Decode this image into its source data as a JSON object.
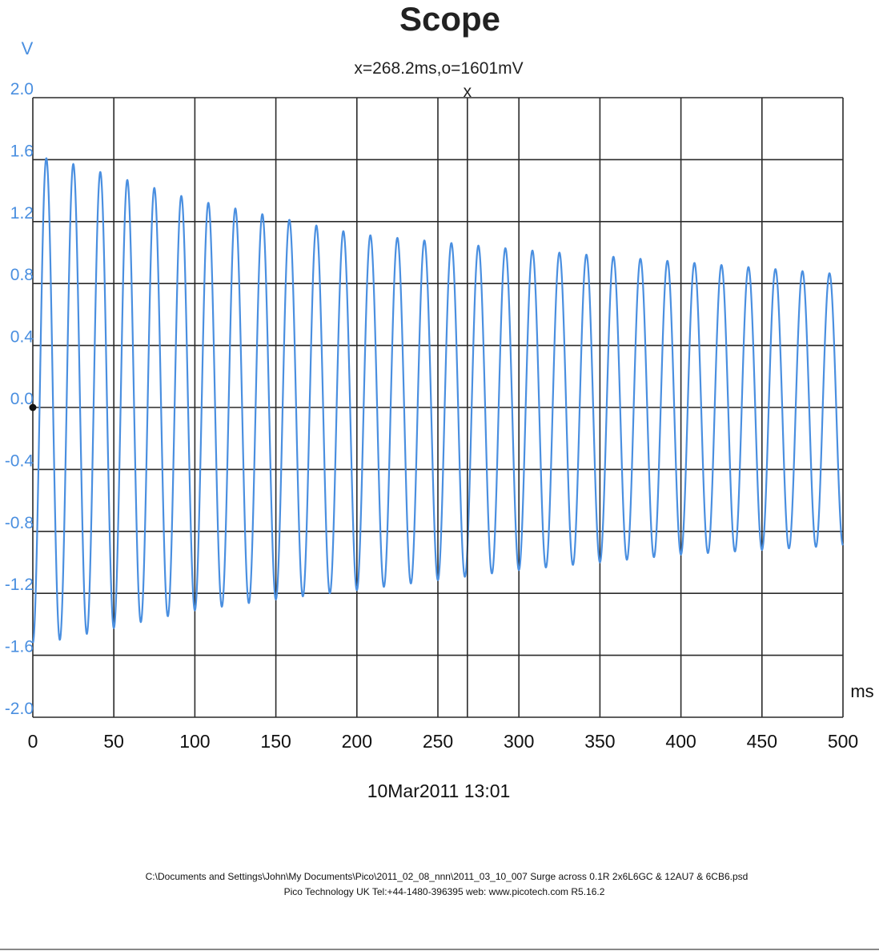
{
  "colors": {
    "trace": "#4a8fe0",
    "axis_label": "#4a8fe0",
    "grid": "#2a2a2a"
  },
  "header": {
    "title": "Scope",
    "cursor_readout": "x=268.2ms,o=1601mV",
    "cursor_marker": "x"
  },
  "footer": {
    "timestamp": "10Mar2011  13:01",
    "file_path": "C:\\Documents and Settings\\John\\My Documents\\Pico\\2011_02_08_nnn\\2011_03_10_007 Surge across 0.1R 2x6L6GC & 12AU7 & 6CB6.psd",
    "vendor_line": "Pico Technology UK  Tel:+44-1480-396395  web: www.picotech.com R5.16.2"
  },
  "chart_data": {
    "type": "line",
    "title": "Scope",
    "xlabel": "ms",
    "ylabel": "V",
    "xlim": [
      0,
      500
    ],
    "ylim": [
      -2.0,
      2.0
    ],
    "grid": true,
    "xticks": [
      "0",
      "50",
      "100",
      "150",
      "200",
      "250",
      "300",
      "350",
      "400",
      "450",
      "500"
    ],
    "yticks": [
      "2.0",
      "1.6",
      "1.2",
      "0.8",
      "0.4",
      "0.0",
      "-0.4",
      "-0.8",
      "-1.2",
      "-1.6",
      "-2.0"
    ],
    "cursor": {
      "x_ms": 268.2,
      "y_mV": 1601
    },
    "series": [
      {
        "waveform": "sine",
        "frequency_hz": 60,
        "peak_positive_envelope": [
          [
            0,
            1.62
          ],
          [
            16,
            1.6
          ],
          [
            100,
            1.34
          ],
          [
            200,
            1.12
          ],
          [
            300,
            1.02
          ],
          [
            400,
            0.94
          ],
          [
            500,
            0.86
          ]
        ],
        "peak_negative_envelope": [
          [
            0,
            1.52
          ],
          [
            8,
            1.52
          ],
          [
            100,
            1.31
          ],
          [
            150,
            1.24
          ],
          [
            200,
            1.18
          ],
          [
            300,
            1.05
          ],
          [
            400,
            0.95
          ],
          [
            500,
            0.89
          ]
        ]
      }
    ]
  }
}
